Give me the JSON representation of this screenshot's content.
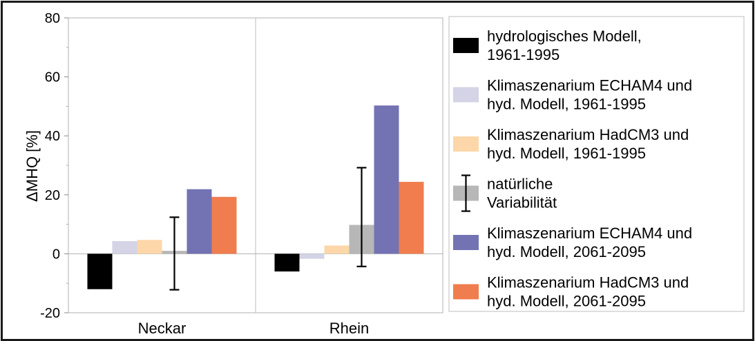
{
  "chart_data": {
    "type": "bar",
    "title": "",
    "xlabel": "",
    "ylabel": "ΔMHQ [%]",
    "ylim": [
      -20,
      80
    ],
    "yticks": [
      -20,
      0,
      20,
      40,
      60,
      80
    ],
    "categories": [
      "Neckar",
      "Rhein"
    ],
    "grid": "vertical separators between categories",
    "legend_position": "right",
    "series": [
      {
        "name": "hydrologisches Modell, 1961-1995",
        "legend_lines": [
          "hydrologisches Modell,",
          "1961-1995"
        ],
        "color": "#000000",
        "values": [
          -12,
          -6
        ]
      },
      {
        "name": "Klimaszenarium ECHAM4 und hyd. Modell, 1961-1995",
        "legend_lines": [
          "Klimaszenarium ECHAM4 und",
          "hyd. Modell, 1961-1995"
        ],
        "color": "#d4d4e6",
        "values": [
          4.3,
          -1.7
        ]
      },
      {
        "name": "Klimaszenarium HadCM3 und hyd. Modell, 1961-1995",
        "legend_lines": [
          "Klimaszenarium HadCM3 und",
          "hyd. Modell, 1961-1995"
        ],
        "color": "#fdd7a9",
        "values": [
          4.7,
          2.8
        ]
      },
      {
        "name": "natürliche Variabilität",
        "legend_lines": [
          "natürliche",
          "Variabilität"
        ],
        "color": "#b7b7b7",
        "values": [
          1,
          9.8
        ],
        "error_low": [
          -12.2,
          -4.3
        ],
        "error_high": [
          12.4,
          29.2
        ]
      },
      {
        "name": "Klimaszenarium ECHAM4 und hyd. Modell, 2061-2095",
        "legend_lines": [
          "Klimaszenarium ECHAM4 und",
          "hyd. Modell, 2061-2095"
        ],
        "color": "#7373b3",
        "values": [
          21.9,
          50.3
        ]
      },
      {
        "name": "Klimaszenarium HadCM3 und hyd. Modell, 2061-2095",
        "legend_lines": [
          "Klimaszenarium HadCM3 und",
          "hyd. Modell, 2061-2095"
        ],
        "color": "#f07d4e",
        "values": [
          19.3,
          24.4
        ]
      }
    ]
  }
}
